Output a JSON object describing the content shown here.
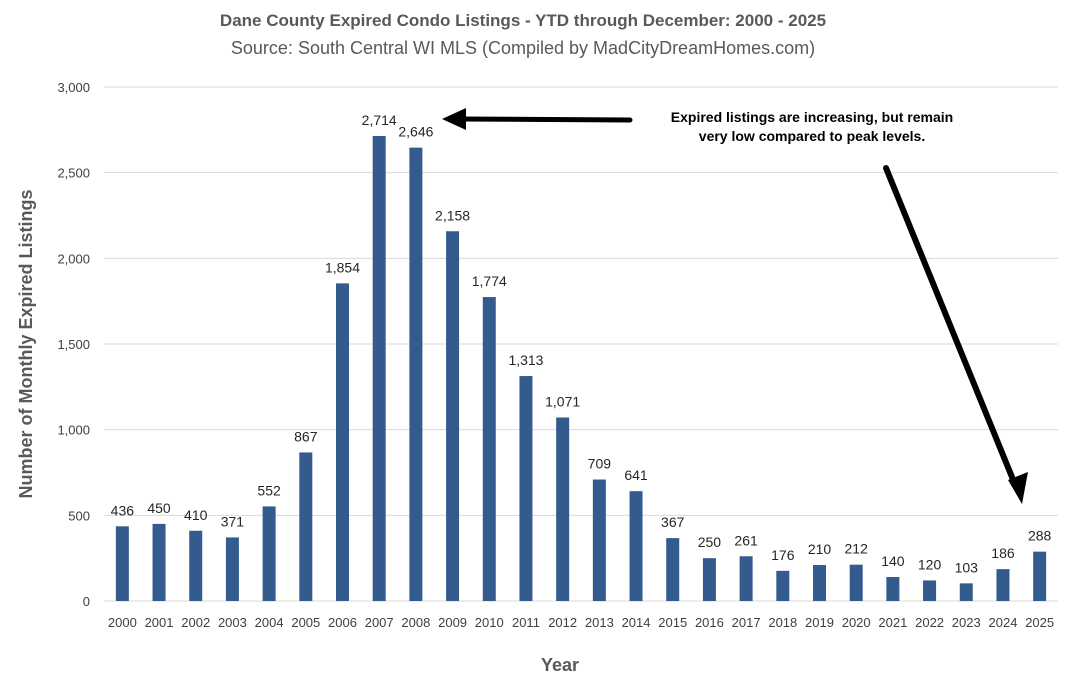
{
  "chart_data": {
    "type": "bar",
    "title": "Dane County Expired Condo Listings - YTD through December: 2000 - 2025",
    "subtitle": "Source: South Central WI MLS (Compiled by MadCityDreamHomes.com)",
    "xlabel": "Year",
    "ylabel": "Number of Monthly Expired Listings",
    "ylim": [
      0,
      3000
    ],
    "yticks": [
      0,
      500,
      1000,
      1500,
      2000,
      2500,
      3000
    ],
    "ytick_labels": [
      "0",
      "500",
      "1,000",
      "1,500",
      "2,000",
      "2,500",
      "3,000"
    ],
    "grid": true,
    "legend": "none",
    "bar_color": "#335b8e",
    "categories": [
      "2000",
      "2001",
      "2002",
      "2003",
      "2004",
      "2005",
      "2006",
      "2007",
      "2008",
      "2009",
      "2010",
      "2011",
      "2012",
      "2013",
      "2014",
      "2015",
      "2016",
      "2017",
      "2018",
      "2019",
      "2020",
      "2021",
      "2022",
      "2023",
      "2024",
      "2025"
    ],
    "values": [
      436,
      450,
      410,
      371,
      552,
      867,
      1854,
      2714,
      2646,
      2158,
      1774,
      1313,
      1071,
      709,
      641,
      367,
      250,
      261,
      176,
      210,
      212,
      140,
      120,
      103,
      186,
      288
    ],
    "data_labels": [
      "436",
      "450",
      "410",
      "371",
      "552",
      "867",
      "1,854",
      "2,714",
      "2,646",
      "2,158",
      "1,774",
      "1,313",
      "1,071",
      "709",
      "641",
      "367",
      "250",
      "261",
      "176",
      "210",
      "212",
      "140",
      "120",
      "103",
      "186",
      "288"
    ],
    "annotation": {
      "line1": "Expired listings are increasing, but remain",
      "line2": "very low compared to peak levels."
    }
  }
}
